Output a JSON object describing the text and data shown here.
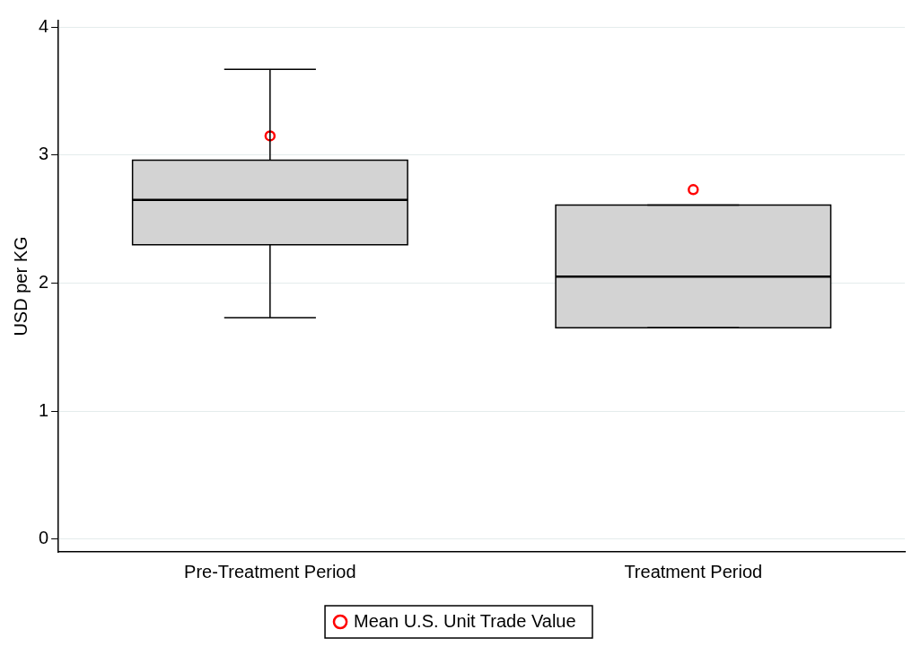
{
  "chart_data": {
    "type": "box",
    "ylabel": "USD per KG",
    "categories": [
      "Pre-Treatment Period",
      "Treatment Period"
    ],
    "boxes": [
      {
        "low": 1.73,
        "q1": 2.3,
        "median": 2.65,
        "q3": 2.96,
        "high": 3.67
      },
      {
        "low": 1.65,
        "q1": 1.65,
        "median": 2.05,
        "q3": 2.61,
        "high": 2.61
      }
    ],
    "color": "#d3d3d3",
    "series": [
      {
        "type": "scatter",
        "name": "Mean U.S. Unit Trade Value",
        "color": "#ff0000",
        "x": [
          "Pre-Treatment Period",
          "Treatment Period"
        ],
        "values": [
          3.15,
          2.73
        ],
        "marker": "circle"
      }
    ],
    "ylim": [
      -0.1,
      4.05
    ],
    "yticks": [
      0,
      1,
      2,
      3,
      4
    ],
    "grid": "y",
    "legend": "bottom"
  }
}
